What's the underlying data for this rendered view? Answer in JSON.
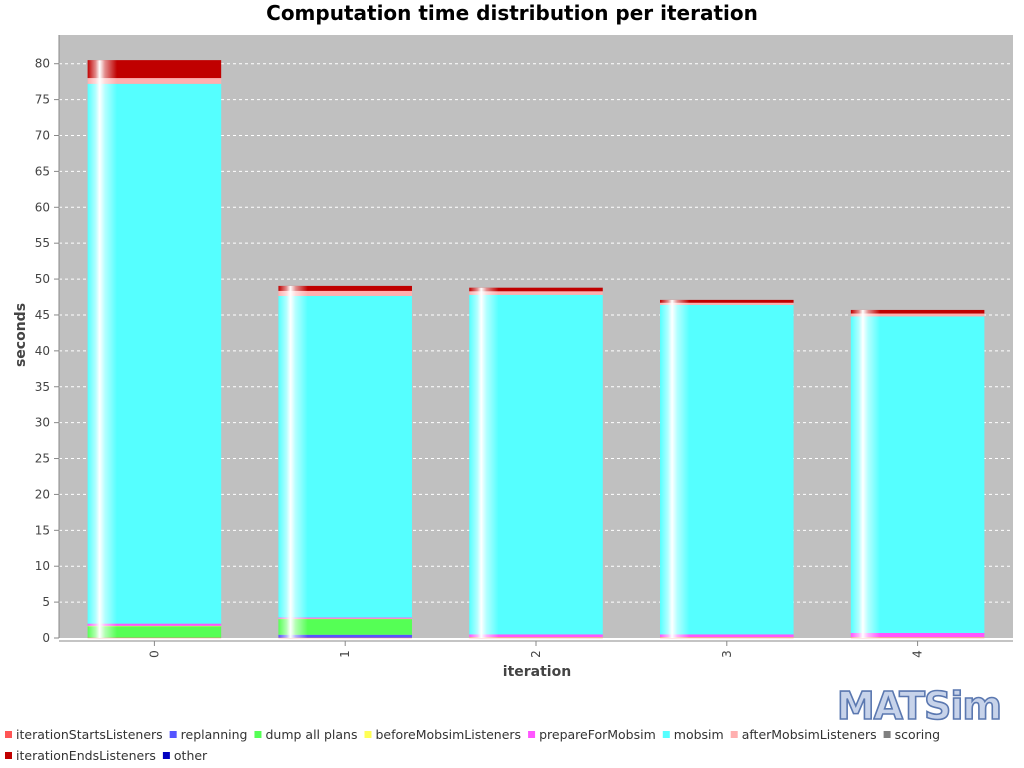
{
  "chart_data": {
    "type": "bar",
    "stacked": true,
    "title": "Computation time distribution per iteration",
    "xlabel": "iteration",
    "ylabel": "seconds",
    "categories": [
      "0",
      "1",
      "2",
      "3",
      "4"
    ],
    "ylim": [
      0,
      84
    ],
    "yticks": [
      0,
      5,
      10,
      15,
      20,
      25,
      30,
      35,
      40,
      45,
      50,
      55,
      60,
      65,
      70,
      75,
      80
    ],
    "grid": true,
    "legend_position": "bottom",
    "series": [
      {
        "name": "iterationStartsListeners",
        "color": "#ff5555",
        "values": [
          0.05,
          0.05,
          0.05,
          0.05,
          0.05
        ]
      },
      {
        "name": "replanning",
        "color": "#5555ff",
        "values": [
          0.0,
          0.4,
          0.0,
          0.0,
          0.0
        ]
      },
      {
        "name": "dump all plans",
        "color": "#55ff55",
        "values": [
          1.6,
          2.2,
          0.0,
          0.0,
          0.0
        ]
      },
      {
        "name": "beforeMobsimListeners",
        "color": "#ffff55",
        "values": [
          0.05,
          0.05,
          0.05,
          0.05,
          0.05
        ]
      },
      {
        "name": "prepareForMobsim",
        "color": "#ff55ff",
        "values": [
          0.3,
          0.15,
          0.4,
          0.4,
          0.6
        ]
      },
      {
        "name": "mobsim",
        "color": "#55ffff",
        "values": [
          75.2,
          44.8,
          47.3,
          45.9,
          44.1
        ]
      },
      {
        "name": "afterMobsimListeners",
        "color": "#ffafaf",
        "values": [
          0.8,
          0.7,
          0.5,
          0.3,
          0.4
        ]
      },
      {
        "name": "scoring",
        "color": "#808080",
        "values": [
          0.0,
          0.0,
          0.0,
          0.0,
          0.0
        ]
      },
      {
        "name": "iterationEndsListeners",
        "color": "#c00000",
        "values": [
          2.5,
          0.7,
          0.5,
          0.4,
          0.5
        ]
      },
      {
        "name": "other",
        "color": "#0000c0",
        "values": [
          0.0,
          0.0,
          0.0,
          0.0,
          0.0
        ]
      }
    ]
  },
  "logo": {
    "text": "MATSim"
  },
  "colors": {
    "plot_background": "#c0c0c0",
    "gridline": "#ffffff",
    "logo_fill": "#c7d3ea",
    "logo_stroke": "#5b78b0"
  }
}
